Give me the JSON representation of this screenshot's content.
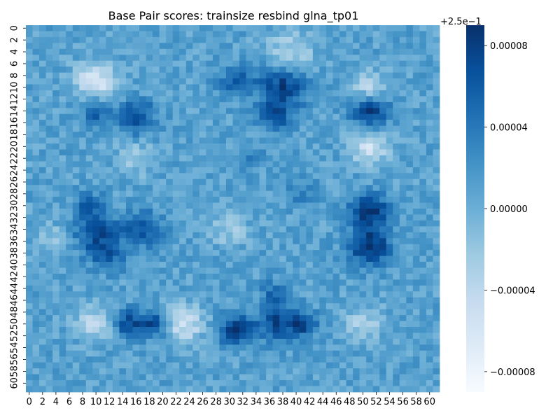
{
  "chart_data": {
    "type": "heatmap",
    "title": "Base Pair scores: trainsize resbind glna_tp01",
    "xlabel": "",
    "ylabel": "",
    "n_rows": 62,
    "n_cols": 62,
    "x_tick_labels": [
      "0",
      "2",
      "4",
      "6",
      "8",
      "10",
      "12",
      "14",
      "16",
      "18",
      "20",
      "22",
      "24",
      "26",
      "28",
      "30",
      "32",
      "34",
      "36",
      "38",
      "40",
      "42",
      "44",
      "46",
      "48",
      "50",
      "52",
      "54",
      "56",
      "58",
      "60"
    ],
    "y_tick_labels": [
      "0",
      "2",
      "4",
      "6",
      "8",
      "10",
      "12",
      "14",
      "16",
      "18",
      "20",
      "22",
      "24",
      "26",
      "28",
      "30",
      "32",
      "34",
      "36",
      "38",
      "40",
      "42",
      "44",
      "46",
      "48",
      "50",
      "52",
      "54",
      "56",
      "58",
      "60"
    ],
    "colormap": "Blues",
    "colorbar": {
      "offset_label": "+2.5e−1",
      "vmin": -9e-05,
      "vmax": 9e-05,
      "ticks": [
        {
          "value": 8e-05,
          "label": "0.00008"
        },
        {
          "value": 4e-05,
          "label": "0.00004"
        },
        {
          "value": 0.0,
          "label": "0.00000"
        },
        {
          "value": -4e-05,
          "label": "−0.00004"
        },
        {
          "value": -8e-05,
          "label": "−0.00008"
        }
      ]
    },
    "value_note": "values are offsets from 0.25; approximate reconstruction of visible blob pattern",
    "blobs": [
      {
        "r": 9,
        "c": 10,
        "s": 2.2,
        "v": -7e-05
      },
      {
        "r": 4,
        "c": 39,
        "s": 2.5,
        "v": -4e-05
      },
      {
        "r": 10,
        "c": 51,
        "s": 1.8,
        "v": -5e-05
      },
      {
        "r": 20,
        "c": 51,
        "s": 2.0,
        "v": -6e-05
      },
      {
        "r": 50,
        "c": 10,
        "s": 2.0,
        "v": -5e-05
      },
      {
        "r": 50,
        "c": 23,
        "s": 2.2,
        "v": -6e-05
      },
      {
        "r": 50,
        "c": 50,
        "s": 2.0,
        "v": -4e-05
      },
      {
        "r": 22,
        "c": 16,
        "s": 2.0,
        "v": -3e-05
      },
      {
        "r": 34,
        "c": 30,
        "s": 2.0,
        "v": -3e-05
      },
      {
        "r": 36,
        "c": 4,
        "s": 2.0,
        "v": -3e-05
      },
      {
        "r": 14,
        "c": 10,
        "s": 1.6,
        "v": 5e-05
      },
      {
        "r": 15,
        "c": 16,
        "s": 2.0,
        "v": 6e-05
      },
      {
        "r": 9,
        "c": 31,
        "s": 1.8,
        "v": 5e-05
      },
      {
        "r": 10,
        "c": 38,
        "s": 2.5,
        "v": 7e-05
      },
      {
        "r": 15,
        "c": 37,
        "s": 1.8,
        "v": 5e-05
      },
      {
        "r": 14,
        "c": 51,
        "s": 2.0,
        "v": 7e-05
      },
      {
        "r": 31,
        "c": 51,
        "s": 2.0,
        "v": 8e-05
      },
      {
        "r": 37,
        "c": 51,
        "s": 2.2,
        "v": 8e-05
      },
      {
        "r": 35,
        "c": 10,
        "s": 2.5,
        "v": 6e-05
      },
      {
        "r": 34,
        "c": 17,
        "s": 2.0,
        "v": 6e-05
      },
      {
        "r": 30,
        "c": 9,
        "s": 1.6,
        "v": 4e-05
      },
      {
        "r": 50,
        "c": 15,
        "s": 1.8,
        "v": 6e-05
      },
      {
        "r": 50,
        "c": 19,
        "s": 1.6,
        "v": 6e-05
      },
      {
        "r": 51,
        "c": 31,
        "s": 1.8,
        "v": 8e-05
      },
      {
        "r": 50,
        "c": 37,
        "s": 2.0,
        "v": 6e-05
      },
      {
        "r": 50,
        "c": 41,
        "s": 1.6,
        "v": 6e-05
      },
      {
        "r": 45,
        "c": 37,
        "s": 1.6,
        "v": 4e-05
      },
      {
        "r": 28,
        "c": 41,
        "s": 1.6,
        "v": 3e-05
      },
      {
        "r": 39,
        "c": 12,
        "s": 1.6,
        "v": 4e-05
      },
      {
        "r": 22,
        "c": 33,
        "s": 1.6,
        "v": 2e-05
      }
    ],
    "noise_amplitude": 1.6e-05
  }
}
